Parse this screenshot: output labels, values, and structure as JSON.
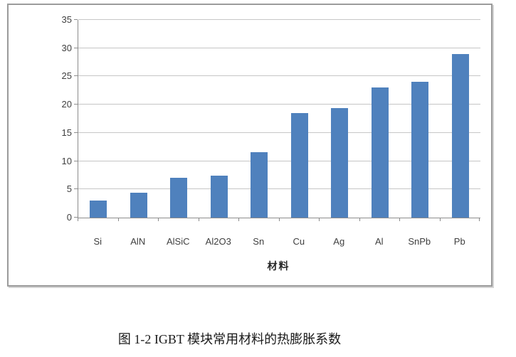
{
  "figure": {
    "caption": "图 1-2  IGBT 模块常用材料的热膨胀系数"
  },
  "chart_data": {
    "type": "bar",
    "title": "",
    "xlabel": "材料",
    "ylabel": "",
    "categories": [
      "Si",
      "AlN",
      "AlSiC",
      "Al2O3",
      "Sn",
      "Cu",
      "Ag",
      "Al",
      "SnPb",
      "Pb"
    ],
    "values": [
      3,
      4.4,
      7,
      7.4,
      11.6,
      18.5,
      19.4,
      23,
      24,
      29
    ],
    "ylim": [
      0,
      35
    ],
    "yticks": [
      0,
      5,
      10,
      15,
      20,
      25,
      30,
      35
    ],
    "grid": true,
    "legend": "none",
    "bar_color": "#4f81bd",
    "gridline_color": "#c6c6c6",
    "axis_color": "#8c8c8c",
    "tick_label_color": "#3f3f3f"
  }
}
